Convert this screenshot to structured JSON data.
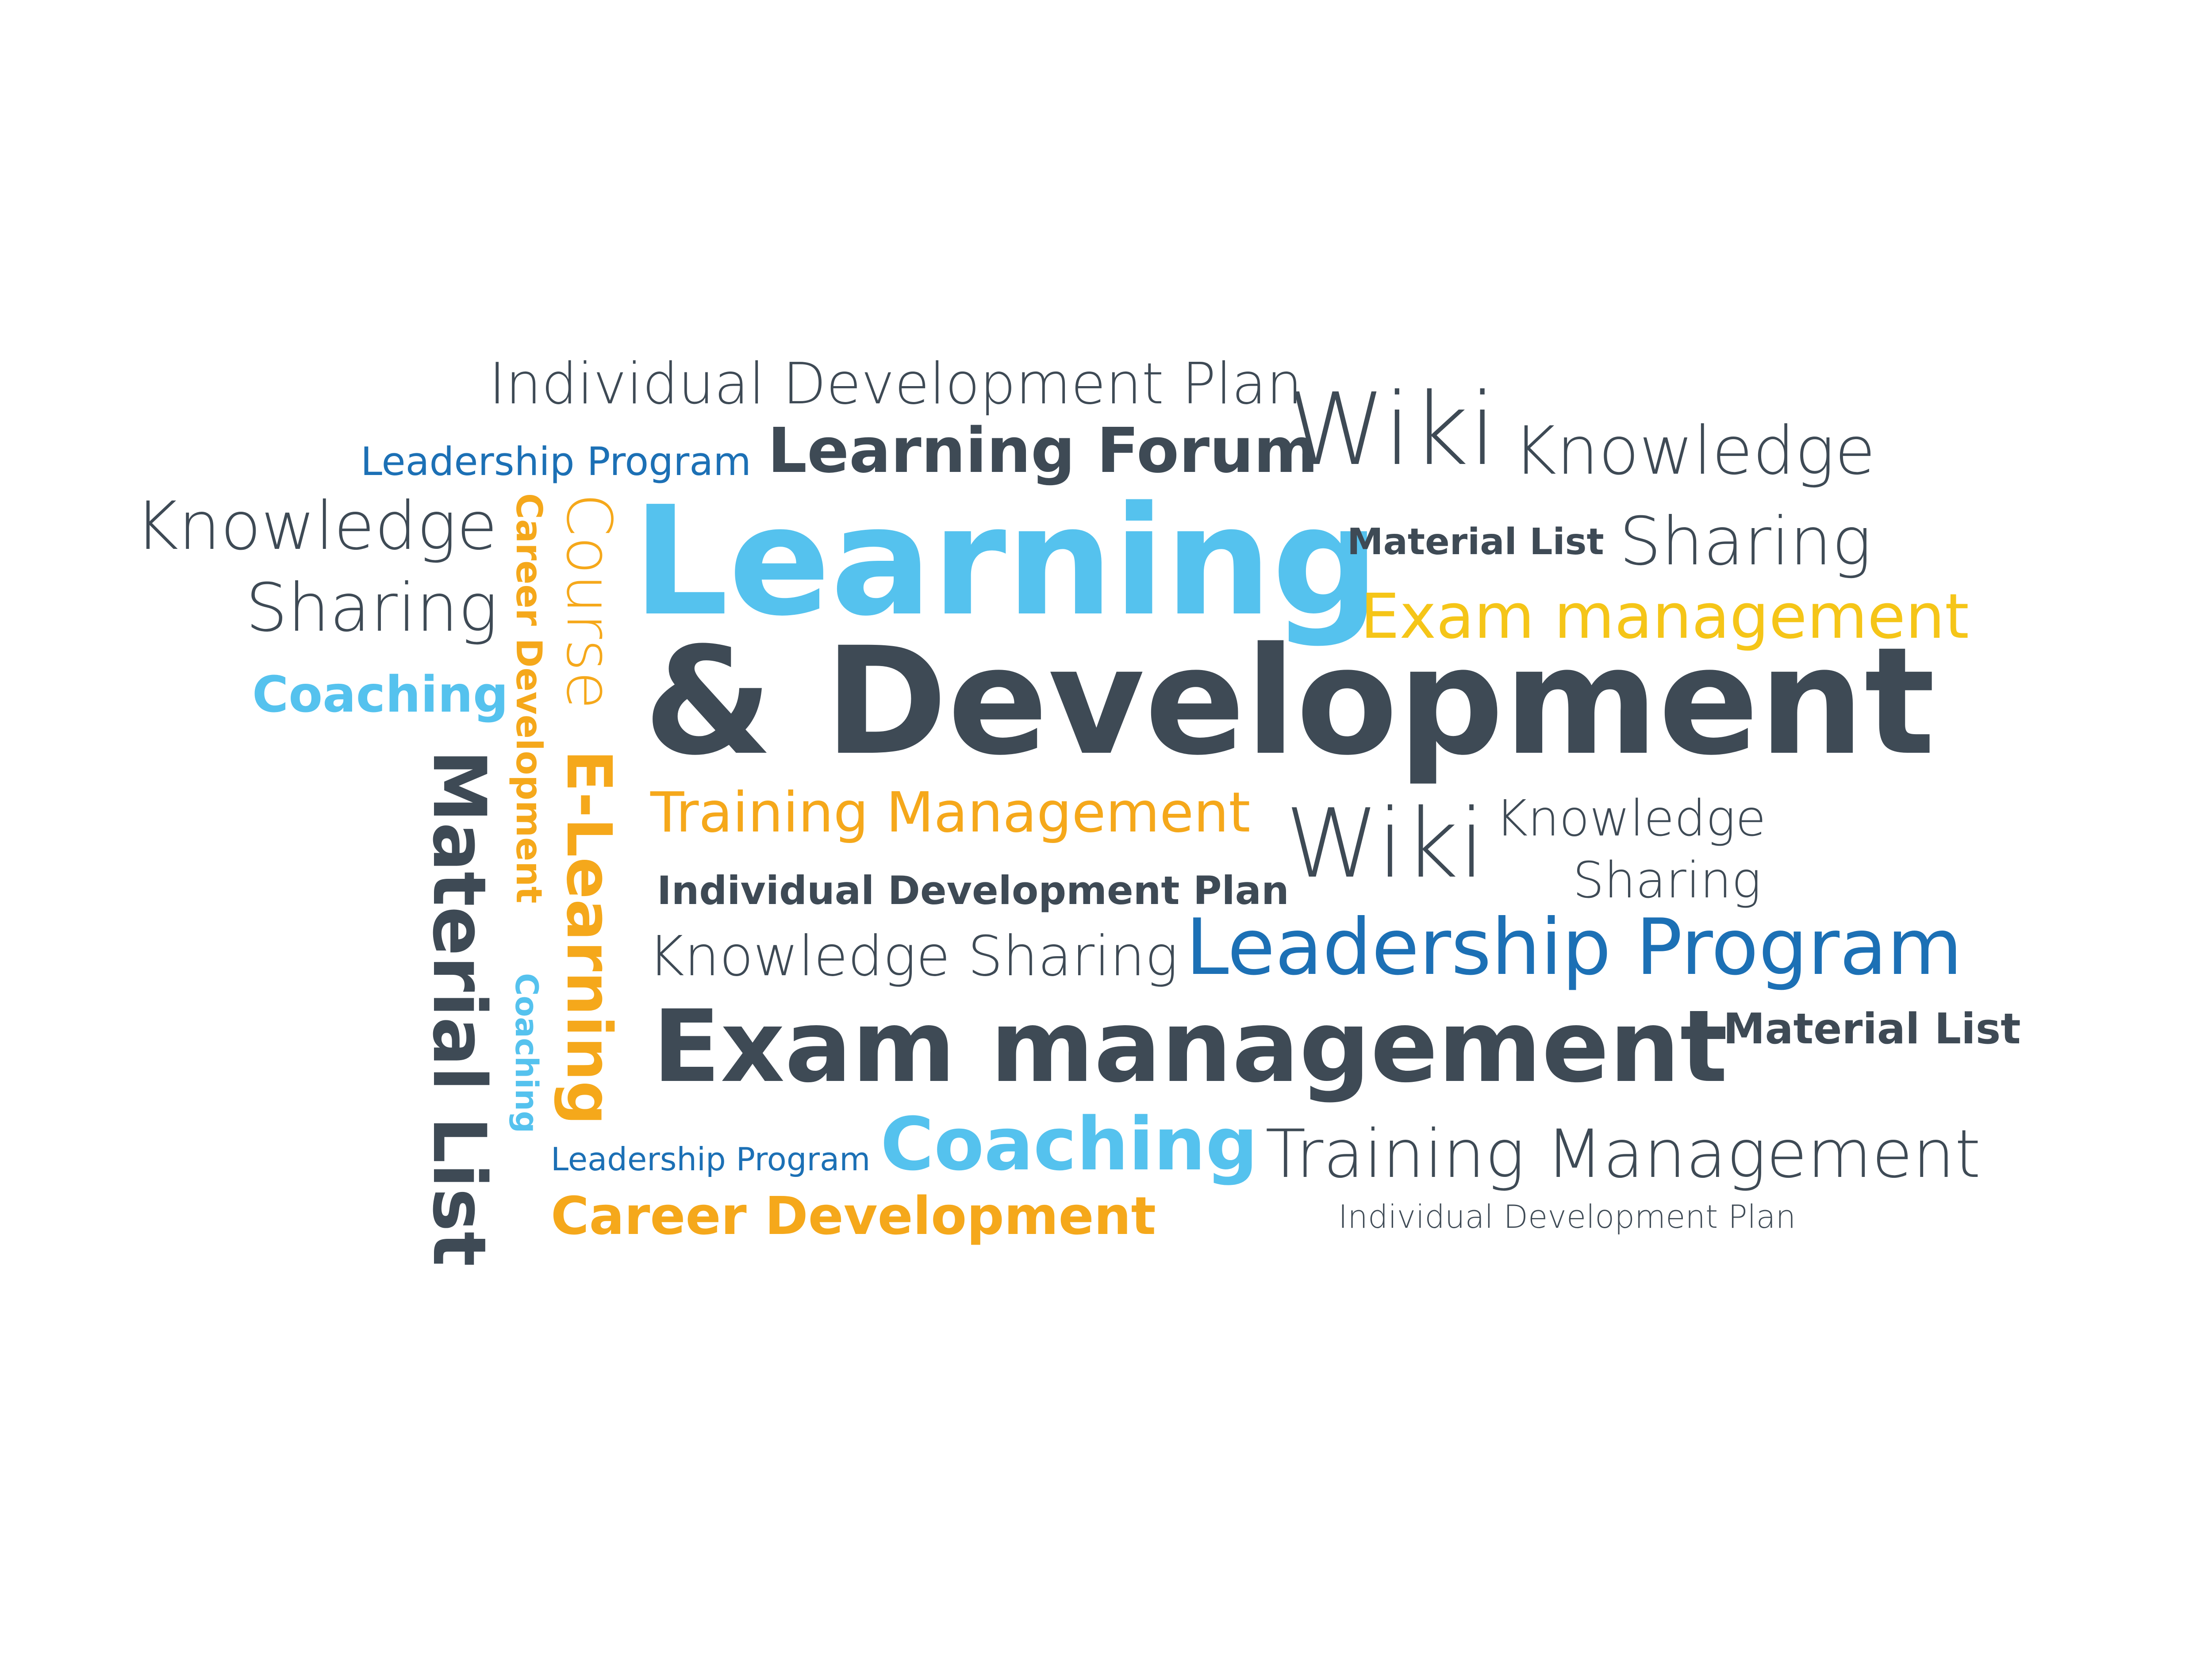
{
  "colors": {
    "dark": "#3e4a55",
    "light_blue": "#55c2ee",
    "blue": "#1c70b5",
    "orange": "#f5a81b",
    "yellow": "#f5c518",
    "background": "#ffffff"
  },
  "words": {
    "individual_development_plan_top": "Individual Development Plan",
    "leadership_program_top": "Leadership Program",
    "learning_forum": "Learning Forum",
    "wiki_top": "Wiki",
    "knowledge_top_right": "Knowledge",
    "knowledge_left": "Knowledge",
    "sharing_left": "Sharing",
    "learning_main": "Learning",
    "material_list_top": "Material List",
    "sharing_right": "Sharing",
    "exam_management_yellow": "Exam management",
    "development_main": "& Development",
    "coaching_left": "Coaching",
    "course_vertical": "Course",
    "e_learning_vertical": "E-Learning",
    "career_development_vertical": "Career Development",
    "coaching_vertical": "Coaching",
    "material_list_vertical": "Material List",
    "training_management_orange": "Training Management",
    "wiki_middle": "Wiki",
    "knowledge_middle": "Knowledge",
    "sharing_middle": "Sharing",
    "individual_development_plan_bold": "Individual Development Plan",
    "knowledge_sharing": "Knowledge Sharing",
    "leadership_program_large": "Leadership Program",
    "exam_management_bold": "Exam management",
    "material_list_right": "Material List",
    "leadership_program_small": "Leadership Program",
    "coaching_bottom": "Coaching",
    "training_management_dark": "Training Management",
    "career_development_bottom": "Career Development",
    "individual_development_plan_bottom": "Individual Development Plan"
  }
}
